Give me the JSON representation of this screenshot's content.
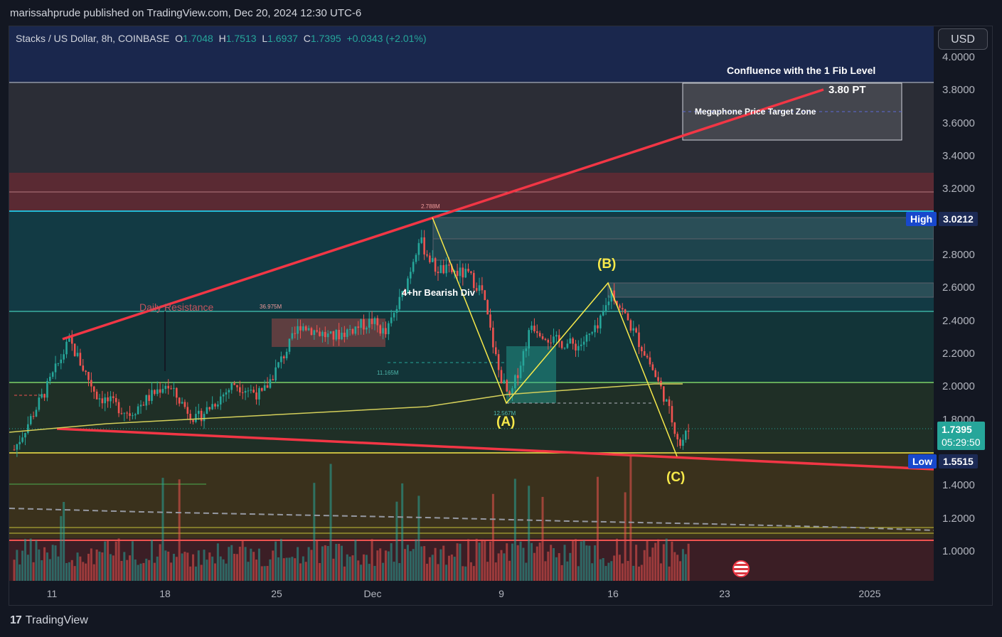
{
  "header": {
    "publisher": "marissahprude published on TradingView.com, Dec 20, 2024 12:30 UTC-6"
  },
  "legend": {
    "symbol": "Stacks / US Dollar, 8h, COINBASE",
    "o_label": "O",
    "o": "1.7048",
    "h_label": "H",
    "h": "1.7513",
    "l_label": "L",
    "l": "1.6937",
    "c_label": "C",
    "c": "1.7395",
    "change": "+0.0343 (+2.01%)"
  },
  "currency_button": "USD",
  "annotations": {
    "confluence": "Confluence with the 1 Fib Level",
    "price_target": "3.80 PT",
    "megaphone": "Megaphone Price Target Zone",
    "bearish_div": "4+hr Bearish Div",
    "daily_resistance": "Daily Resistance",
    "wave_a": "(A)",
    "wave_b": "(B)",
    "wave_c": "(C)",
    "vol1": "36.975M",
    "vol2": "2.788M",
    "vol3": "11.165M",
    "vol4": "12.567M"
  },
  "price_badges": {
    "high_label": "High",
    "high_value": "3.0212",
    "low_label": "Low",
    "low_value": "1.5515",
    "last_price": "1.7395",
    "countdown": "05:29:50"
  },
  "footer": {
    "brand": "TradingView",
    "logo_mark": "17"
  },
  "colors": {
    "up": "#26a69a",
    "down": "#ef5350",
    "trend": "#f23645",
    "wave": "#f7e94a"
  },
  "chart_data": {
    "type": "candlestick",
    "title": "Stacks / US Dollar, 8h, COINBASE",
    "xlabel": "",
    "ylabel": "",
    "ylim": [
      0.88,
      4.08
    ],
    "y_ticks": [
      "4.0000",
      "3.8000",
      "3.6000",
      "3.4000",
      "3.2000",
      "2.8000",
      "2.6000",
      "2.4000",
      "2.2000",
      "2.0000",
      "1.8000",
      "1.4000",
      "1.2000",
      "1.0000"
    ],
    "x_ticks": [
      "11",
      "18",
      "25",
      "Dec",
      "9",
      "16",
      "23",
      "2025"
    ],
    "pivots": [
      {
        "t": 0,
        "p": 1.62
      },
      {
        "t": 12,
        "p": 2.0
      },
      {
        "t": 20,
        "p": 2.28
      },
      {
        "t": 30,
        "p": 1.95
      },
      {
        "t": 42,
        "p": 1.84
      },
      {
        "t": 55,
        "p": 2.02
      },
      {
        "t": 66,
        "p": 1.8
      },
      {
        "t": 80,
        "p": 2.02
      },
      {
        "t": 90,
        "p": 1.95
      },
      {
        "t": 104,
        "p": 2.38
      },
      {
        "t": 115,
        "p": 2.3
      },
      {
        "t": 130,
        "p": 2.4
      },
      {
        "t": 135,
        "p": 2.32
      },
      {
        "t": 142,
        "p": 2.6
      },
      {
        "t": 147,
        "p": 2.9
      },
      {
        "t": 153,
        "p": 2.72
      },
      {
        "t": 165,
        "p": 2.68
      },
      {
        "t": 170,
        "p": 2.58
      },
      {
        "t": 176,
        "p": 2.1
      },
      {
        "t": 180,
        "p": 1.92
      },
      {
        "t": 188,
        "p": 2.38
      },
      {
        "t": 196,
        "p": 2.28
      },
      {
        "t": 205,
        "p": 2.25
      },
      {
        "t": 212,
        "p": 2.35
      },
      {
        "t": 217,
        "p": 2.58
      },
      {
        "t": 223,
        "p": 2.4
      },
      {
        "t": 230,
        "p": 2.18
      },
      {
        "t": 236,
        "p": 1.95
      },
      {
        "t": 242,
        "p": 1.65
      },
      {
        "t": 245,
        "p": 1.74
      }
    ],
    "n_candles": 246,
    "wave_points": [
      {
        "label": "(A)",
        "t": 178,
        "p": 1.9
      },
      {
        "label": "(B)",
        "t": 215,
        "p": 2.63
      },
      {
        "label": "(C)",
        "t": 241,
        "p": 1.56
      }
    ],
    "upper_trendline": [
      {
        "t": 20,
        "p": 2.28
      },
      {
        "t": 289,
        "p": 3.8
      }
    ],
    "lower_trendline": [
      {
        "t": 18,
        "p": 1.74
      },
      {
        "t": 320,
        "p": 1.5
      }
    ],
    "horizontal_levels": [
      3.0212,
      2.45,
      2.02,
      1.5515
    ],
    "high": 3.0212,
    "low": 1.5515,
    "last": 1.7395
  }
}
